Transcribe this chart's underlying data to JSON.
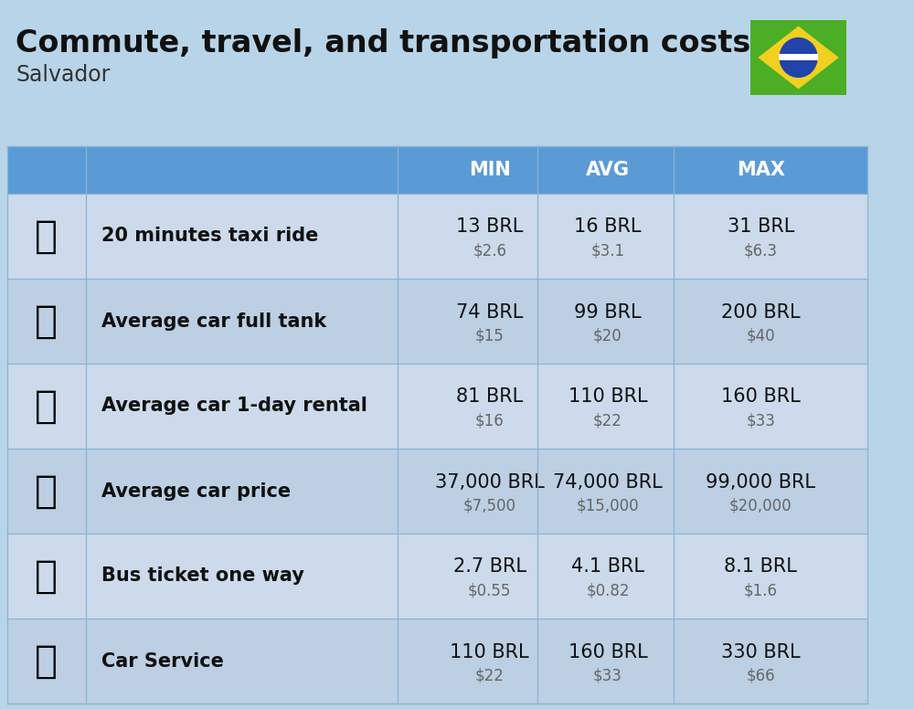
{
  "title": "Commute, travel, and transportation costs",
  "subtitle": "Salvador",
  "background_color": "#b8d4e8",
  "header_bg_color": "#5b9bd5",
  "header_text_color": "#ffffff",
  "row_colors": [
    "#ccdaeb",
    "#bccfe3"
  ],
  "col_headers": [
    "MIN",
    "AVG",
    "MAX"
  ],
  "rows": [
    {
      "label": "20 minutes taxi ride",
      "min_brl": "13 BRL",
      "min_usd": "$2.6",
      "avg_brl": "16 BRL",
      "avg_usd": "$3.1",
      "max_brl": "31 BRL",
      "max_usd": "$6.3"
    },
    {
      "label": "Average car full tank",
      "min_brl": "74 BRL",
      "min_usd": "$15",
      "avg_brl": "99 BRL",
      "avg_usd": "$20",
      "max_brl": "200 BRL",
      "max_usd": "$40"
    },
    {
      "label": "Average car 1-day rental",
      "min_brl": "81 BRL",
      "min_usd": "$16",
      "avg_brl": "110 BRL",
      "avg_usd": "$22",
      "max_brl": "160 BRL",
      "max_usd": "$33"
    },
    {
      "label": "Average car price",
      "min_brl": "37,000 BRL",
      "min_usd": "$7,500",
      "avg_brl": "74,000 BRL",
      "avg_usd": "$15,000",
      "max_brl": "99,000 BRL",
      "max_usd": "$20,000"
    },
    {
      "label": "Bus ticket one way",
      "min_brl": "2.7 BRL",
      "min_usd": "$0.55",
      "avg_brl": "4.1 BRL",
      "avg_usd": "$0.82",
      "max_brl": "8.1 BRL",
      "max_usd": "$1.6"
    },
    {
      "label": "Car Service",
      "min_brl": "110 BRL",
      "min_usd": "$22",
      "avg_brl": "160 BRL",
      "avg_usd": "$33",
      "max_brl": "330 BRL",
      "max_usd": "$66"
    }
  ],
  "title_fontsize": 24,
  "subtitle_fontsize": 17,
  "header_fontsize": 15,
  "cell_brl_fontsize": 15,
  "cell_usd_fontsize": 12,
  "label_fontsize": 15,
  "flag_green": "#4cae24",
  "flag_yellow": "#f0d020",
  "flag_blue": "#2244aa",
  "flag_white": "#ffffff"
}
